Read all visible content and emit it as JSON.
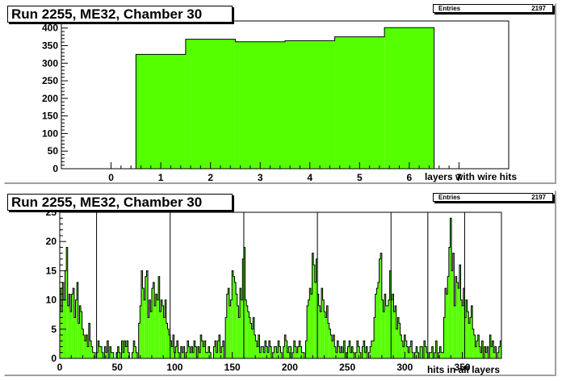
{
  "chart_data": [
    {
      "type": "bar",
      "title": "Run 2255, ME32, Chamber 30",
      "xlabel": "layers with wire hits",
      "ylabel": "",
      "stats": {
        "label": "Entries",
        "value": "2197"
      },
      "xlim": [
        -1,
        8
      ],
      "ylim": [
        0,
        420
      ],
      "xticks": [
        0,
        1,
        2,
        3,
        4,
        5,
        6,
        7
      ],
      "yticks": [
        0,
        50,
        100,
        150,
        200,
        250,
        300,
        350,
        400
      ],
      "fill_color": "#55ff00",
      "bins": [
        {
          "x0": 0.5,
          "x1": 1.5,
          "value": 325
        },
        {
          "x0": 1.5,
          "x1": 2.5,
          "value": 368
        },
        {
          "x0": 2.5,
          "x1": 3.5,
          "value": 361
        },
        {
          "x0": 3.5,
          "x1": 4.5,
          "value": 364
        },
        {
          "x0": 4.5,
          "x1": 5.5,
          "value": 375
        },
        {
          "x0": 5.5,
          "x1": 6.5,
          "value": 401
        }
      ]
    },
    {
      "type": "bar",
      "title": "Run 2255, ME32, Chamber 30",
      "xlabel": "hits in all layers",
      "ylabel": "",
      "stats": {
        "label": "Entries",
        "value": "2197"
      },
      "xlim": [
        0,
        384
      ],
      "ylim": [
        0,
        25
      ],
      "xticks": [
        0,
        50,
        100,
        150,
        200,
        250,
        300,
        350
      ],
      "yticks": [
        0,
        5,
        10,
        15,
        20,
        25
      ],
      "fill_color": "#55ff00",
      "layer_boundaries": [
        32,
        96,
        160,
        224,
        288,
        320,
        352
      ],
      "values": [
        12,
        8,
        13,
        10,
        15,
        19,
        9,
        11,
        8,
        11,
        12,
        7,
        10,
        13,
        6,
        9,
        8,
        5,
        4,
        3,
        4,
        2,
        6,
        3,
        2,
        1,
        1,
        0,
        1,
        3,
        2,
        2,
        1,
        0,
        2,
        1,
        3,
        0,
        2,
        1,
        1,
        0,
        0,
        1,
        2,
        1,
        0,
        3,
        1,
        3,
        2,
        3,
        1,
        0,
        0,
        1,
        3,
        2,
        1,
        0,
        6,
        9,
        15,
        12,
        10,
        14,
        15,
        7,
        10,
        8,
        12,
        13,
        9,
        11,
        10,
        14,
        8,
        10,
        9,
        7,
        10,
        6,
        5,
        4,
        3,
        2,
        4,
        1,
        2,
        3,
        1,
        0,
        2,
        1,
        2,
        0,
        1,
        3,
        2,
        1,
        2,
        1,
        3,
        2,
        0,
        2,
        1,
        4,
        3,
        2,
        3,
        1,
        1,
        2,
        1,
        0,
        0,
        2,
        3,
        1,
        3,
        4,
        1,
        2,
        3,
        0,
        7,
        11,
        12,
        9,
        10,
        15,
        14,
        13,
        11,
        9,
        7,
        12,
        10,
        17,
        19,
        10,
        9,
        8,
        7,
        6,
        5,
        7,
        4,
        3,
        2,
        4,
        1,
        2,
        2,
        1,
        3,
        2,
        1,
        3,
        2,
        0,
        1,
        2,
        2,
        1,
        3,
        2,
        1,
        0,
        2,
        4,
        3,
        1,
        2,
        2,
        0,
        1,
        3,
        2,
        1,
        2,
        3,
        2,
        1,
        1,
        0,
        3,
        9,
        10,
        12,
        11,
        18,
        16,
        13,
        17,
        11,
        9,
        8,
        12,
        10,
        8,
        7,
        9,
        6,
        5,
        4,
        3,
        4,
        2,
        1,
        3,
        2,
        1,
        2,
        1,
        3,
        0,
        1,
        2,
        3,
        1,
        2,
        1,
        0,
        1,
        3,
        2,
        1,
        0,
        2,
        3,
        1,
        2,
        0,
        1,
        2,
        3,
        3,
        7,
        11,
        12,
        13,
        17,
        18,
        10,
        8,
        11,
        9,
        9,
        10,
        15,
        10,
        11,
        8,
        9,
        5,
        7,
        6,
        4,
        3,
        2,
        4,
        3,
        2,
        1,
        2,
        3,
        1,
        0,
        1,
        2,
        1,
        0,
        2,
        2,
        0,
        3,
        2,
        1,
        0,
        1,
        1,
        2,
        0,
        1,
        3,
        0,
        1,
        2,
        1,
        1,
        7,
        12,
        11,
        14,
        19,
        24,
        15,
        18,
        9,
        14,
        13,
        12,
        16,
        10,
        9,
        12,
        7,
        10,
        8,
        6,
        7,
        9,
        5,
        4,
        2,
        3,
        4,
        2,
        1,
        3,
        0,
        2,
        1,
        2,
        0,
        4,
        2,
        3,
        1,
        2,
        0,
        1,
        2,
        3
      ]
    }
  ]
}
